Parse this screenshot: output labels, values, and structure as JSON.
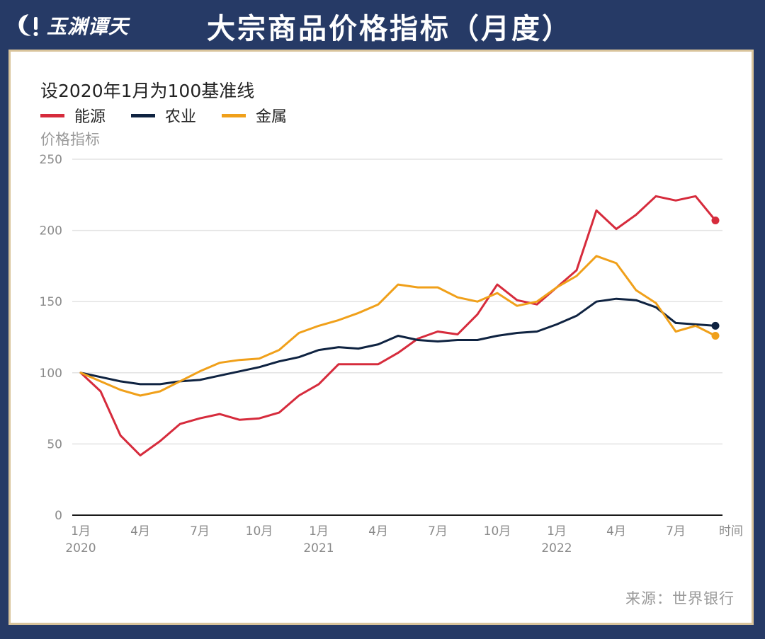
{
  "header": {
    "logo_text": "玉渊谭天",
    "title": "大宗商品价格指标（月度）"
  },
  "source": "来源：世界银行",
  "colors": {
    "background": "#263a66",
    "border": "#d9c49b",
    "energy": "#d62b3c",
    "agriculture": "#0f2341",
    "metals": "#f0a01a"
  },
  "chart_data": {
    "type": "line",
    "title": "设2020年1月为100基准线",
    "ylabel": "价格指标",
    "xlabel": "时间",
    "ylim": [
      0,
      250
    ],
    "yticks": [
      0,
      50,
      100,
      150,
      200,
      250
    ],
    "grid": true,
    "legend_position": "top-left",
    "x": [
      "2020-01",
      "2020-02",
      "2020-03",
      "2020-04",
      "2020-05",
      "2020-06",
      "2020-07",
      "2020-08",
      "2020-09",
      "2020-10",
      "2020-11",
      "2020-12",
      "2021-01",
      "2021-02",
      "2021-03",
      "2021-04",
      "2021-05",
      "2021-06",
      "2021-07",
      "2021-08",
      "2021-09",
      "2021-10",
      "2021-11",
      "2021-12",
      "2022-01",
      "2022-02",
      "2022-03",
      "2022-04",
      "2022-05",
      "2022-06",
      "2022-07",
      "2022-08",
      "2022-09"
    ],
    "xtick_labels": [
      {
        "index": 0,
        "line1": "1月",
        "line2": "2020"
      },
      {
        "index": 3,
        "line1": "4月",
        "line2": ""
      },
      {
        "index": 6,
        "line1": "7月",
        "line2": ""
      },
      {
        "index": 9,
        "line1": "10月",
        "line2": ""
      },
      {
        "index": 12,
        "line1": "1月",
        "line2": "2021"
      },
      {
        "index": 15,
        "line1": "4月",
        "line2": ""
      },
      {
        "index": 18,
        "line1": "7月",
        "line2": ""
      },
      {
        "index": 21,
        "line1": "10月",
        "line2": ""
      },
      {
        "index": 24,
        "line1": "1月",
        "line2": "2022"
      },
      {
        "index": 27,
        "line1": "4月",
        "line2": ""
      },
      {
        "index": 30,
        "line1": "7月",
        "line2": ""
      }
    ],
    "series": [
      {
        "name": "能源",
        "color": "#d62b3c",
        "values": [
          100,
          87,
          56,
          42,
          52,
          64,
          68,
          71,
          67,
          68,
          72,
          84,
          92,
          106,
          106,
          106,
          114,
          124,
          129,
          127,
          141,
          162,
          151,
          148,
          160,
          172,
          214,
          201,
          211,
          224,
          221,
          224,
          207
        ]
      },
      {
        "name": "农业",
        "color": "#0f2341",
        "values": [
          100,
          97,
          94,
          92,
          92,
          94,
          95,
          98,
          101,
          104,
          108,
          111,
          116,
          118,
          117,
          120,
          126,
          123,
          122,
          123,
          123,
          126,
          128,
          129,
          134,
          140,
          150,
          152,
          151,
          146,
          135,
          134,
          133
        ]
      },
      {
        "name": "金属",
        "color": "#f0a01a",
        "values": [
          100,
          94,
          88,
          84,
          87,
          94,
          101,
          107,
          109,
          110,
          116,
          128,
          133,
          137,
          142,
          148,
          162,
          160,
          160,
          153,
          150,
          156,
          147,
          150,
          160,
          168,
          182,
          177,
          158,
          149,
          129,
          133,
          126
        ]
      }
    ]
  }
}
